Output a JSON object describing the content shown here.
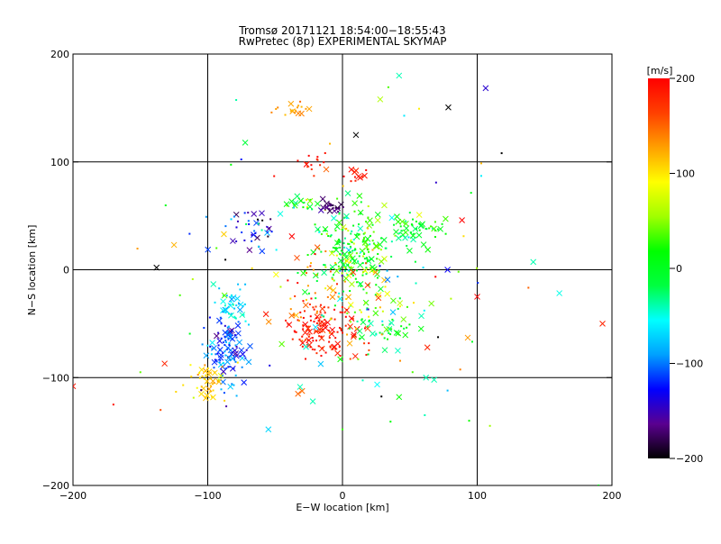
{
  "chart_data": {
    "type": "scatter",
    "title": "Tromsø 20171121 18:54:00−18:55:43",
    "subtitle": "RwPretec (8p) EXPERIMENTAL SKYMAP",
    "xlabel": "E−W location [km]",
    "ylabel": "N−S location [km]",
    "xlim": [
      -200,
      200
    ],
    "ylim": [
      -200,
      200
    ],
    "x_ticks": [
      "−200",
      "−100",
      "0",
      "100",
      "200"
    ],
    "y_ticks": [
      "−200",
      "−100",
      "0",
      "100",
      "200"
    ],
    "grid_x": [
      -100,
      0,
      100
    ],
    "grid_y": [
      -100,
      0,
      100
    ],
    "colorbar": {
      "label": "[m/s]",
      "range": [
        -200,
        200
      ],
      "ticks": [
        "−200",
        "−100",
        "0",
        "100",
        "200"
      ],
      "colors": [
        "#000000",
        "#5a0090",
        "#0000ff",
        "#00a0ff",
        "#00ffff",
        "#00ff40",
        "#00ff00",
        "#a0ff00",
        "#ffff00",
        "#ffa000",
        "#ff4000",
        "#ff0000"
      ]
    },
    "marker_types": [
      "dot",
      "cross"
    ],
    "clusters": [
      {
        "x": -15,
        "y": -55,
        "sx": 12,
        "sy": 12,
        "n": 120,
        "v": 185,
        "vs": 15
      },
      {
        "x": 5,
        "y": 15,
        "sx": 15,
        "sy": 20,
        "n": 220,
        "v": 10,
        "vs": 35
      },
      {
        "x": -8,
        "y": 58,
        "sx": 5,
        "sy": 3,
        "n": 25,
        "v": -170,
        "vs": 10
      },
      {
        "x": 50,
        "y": 38,
        "sx": 10,
        "sy": 7,
        "n": 45,
        "v": -5,
        "vs": 20
      },
      {
        "x": -85,
        "y": -75,
        "sx": 8,
        "sy": 16,
        "n": 110,
        "v": -110,
        "vs": 25
      },
      {
        "x": -82,
        "y": -35,
        "sx": 6,
        "sy": 10,
        "n": 40,
        "v": -60,
        "vs": 20
      },
      {
        "x": -100,
        "y": -105,
        "sx": 9,
        "sy": 10,
        "n": 45,
        "v": 110,
        "vs": 15
      },
      {
        "x": -65,
        "y": 35,
        "sx": 10,
        "sy": 12,
        "n": 40,
        "v": -140,
        "vs": 40
      },
      {
        "x": -35,
        "y": 150,
        "sx": 6,
        "sy": 4,
        "n": 18,
        "v": 125,
        "vs": 15
      },
      {
        "x": -22,
        "y": 100,
        "sx": 5,
        "sy": 5,
        "n": 15,
        "v": 180,
        "vs": 15
      },
      {
        "x": 10,
        "y": 88,
        "sx": 5,
        "sy": 4,
        "n": 12,
        "v": 190,
        "vs": 10
      },
      {
        "x": 30,
        "y": -55,
        "sx": 10,
        "sy": 8,
        "n": 35,
        "v": -10,
        "vs": 25
      },
      {
        "x": 70,
        "y": 38,
        "sx": 4,
        "sy": 4,
        "n": 12,
        "v": 10,
        "vs": 20
      },
      {
        "x": -30,
        "y": 60,
        "sx": 8,
        "sy": 6,
        "n": 20,
        "v": 20,
        "vs": 40
      },
      {
        "x": -20,
        "y": -20,
        "sx": 15,
        "sy": 18,
        "n": 50,
        "v": 140,
        "vs": 30
      },
      {
        "x": 15,
        "y": -40,
        "sx": 20,
        "sy": 25,
        "n": 60,
        "v": 40,
        "vs": 80
      },
      {
        "x": 0,
        "y": 0,
        "sx": 80,
        "sy": 80,
        "n": 90,
        "v": 0,
        "vs": 120
      }
    ],
    "outliers": [
      {
        "x": -138,
        "y": 2,
        "v": -200,
        "m": "cross"
      },
      {
        "x": 10,
        "y": 125,
        "v": -200,
        "m": "cross"
      },
      {
        "x": -125,
        "y": 23,
        "v": 120,
        "m": "cross"
      },
      {
        "x": -88,
        "y": 33,
        "v": 110,
        "m": "cross"
      },
      {
        "x": 28,
        "y": 158,
        "v": 60,
        "m": "cross"
      },
      {
        "x": 42,
        "y": 180,
        "v": -40,
        "m": "cross"
      },
      {
        "x": 103,
        "y": 87,
        "v": -60,
        "m": "dot"
      },
      {
        "x": 193,
        "y": -50,
        "v": 180,
        "m": "cross"
      },
      {
        "x": -200,
        "y": -108,
        "v": 190,
        "m": "cross"
      },
      {
        "x": 190,
        "y": -200,
        "v": 10,
        "m": "dot"
      },
      {
        "x": -55,
        "y": -148,
        "v": -70,
        "m": "cross"
      },
      {
        "x": 42,
        "y": -118,
        "v": 20,
        "m": "cross"
      },
      {
        "x": 93,
        "y": -63,
        "v": 130,
        "m": "cross"
      },
      {
        "x": 100,
        "y": -25,
        "v": 200,
        "m": "cross"
      },
      {
        "x": 78,
        "y": 0,
        "v": -130,
        "m": "cross"
      },
      {
        "x": -33,
        "y": -115,
        "v": 150,
        "m": "cross"
      },
      {
        "x": -22,
        "y": -122,
        "v": -40,
        "m": "cross"
      },
      {
        "x": 62,
        "y": -100,
        "v": -40,
        "m": "cross"
      },
      {
        "x": 68,
        "y": -102,
        "v": -40,
        "m": "cross"
      },
      {
        "x": 0,
        "y": -148,
        "v": 30,
        "m": "dot"
      },
      {
        "x": 94,
        "y": -140,
        "v": 20,
        "m": "dot"
      },
      {
        "x": -150,
        "y": -95,
        "v": 40,
        "m": "dot"
      },
      {
        "x": -132,
        "y": -87,
        "v": 180,
        "m": "cross"
      },
      {
        "x": -170,
        "y": -125,
        "v": 190,
        "m": "dot"
      },
      {
        "x": -135,
        "y": -130,
        "v": 160,
        "m": "dot"
      },
      {
        "x": 78,
        "y": -112,
        "v": -80,
        "m": "dot"
      },
      {
        "x": 63,
        "y": -72,
        "v": 180,
        "m": "cross"
      }
    ]
  }
}
